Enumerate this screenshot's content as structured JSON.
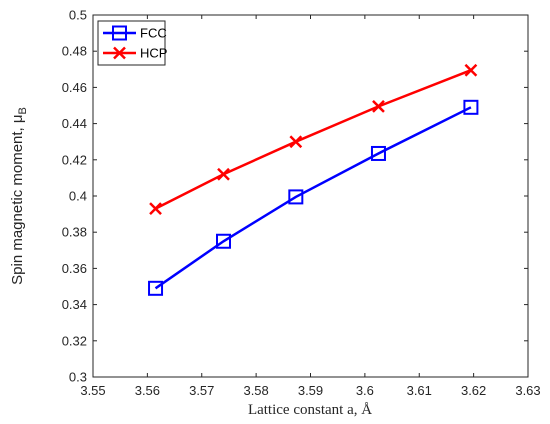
{
  "chart_data": {
    "type": "line",
    "xlabel": "Lattice constant a, Å",
    "ylabel": "Spin magnetic moment, μ",
    "ylabel_subscript": "B",
    "xlim": [
      3.55,
      3.63
    ],
    "ylim": [
      0.3,
      0.5
    ],
    "xticks": [
      "3.55",
      "3.56",
      "3.57",
      "3.58",
      "3.59",
      "3.6",
      "3.61",
      "3.62",
      "3.63"
    ],
    "yticks": [
      "0.3",
      "0.32",
      "0.34",
      "0.36",
      "0.38",
      "0.4",
      "0.42",
      "0.44",
      "0.46",
      "0.48",
      "0.5"
    ],
    "grid": false,
    "legend_position": "top-left",
    "series": [
      {
        "name": "FCC",
        "color": "#0000ff",
        "marker": "square",
        "x": [
          3.5615,
          3.574,
          3.5873,
          3.6025,
          3.6195
        ],
        "y": [
          0.349,
          0.375,
          0.3995,
          0.4235,
          0.449
        ]
      },
      {
        "name": "HCP",
        "color": "#ff0000",
        "marker": "x",
        "x": [
          3.5615,
          3.574,
          3.5873,
          3.6025,
          3.6195
        ],
        "y": [
          0.393,
          0.412,
          0.43,
          0.4495,
          0.4695
        ]
      }
    ]
  }
}
